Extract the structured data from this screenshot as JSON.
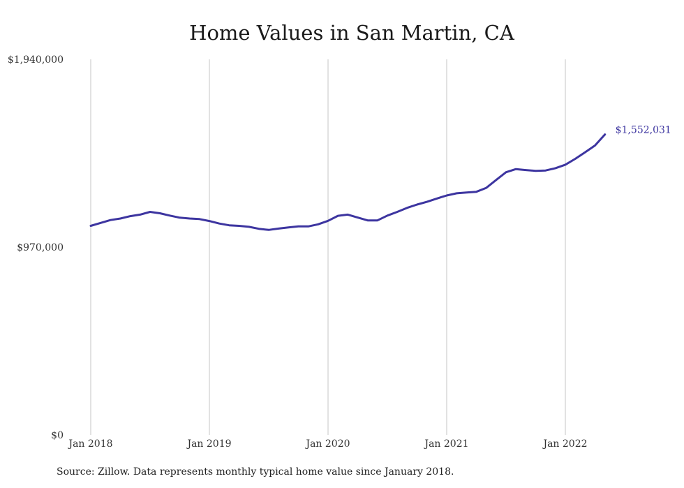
{
  "chart_data": {
    "type": "line",
    "title": "Home Values in San Martin, CA",
    "xlabel": "",
    "ylabel": "",
    "ylim": [
      0,
      1940000
    ],
    "yticks": [
      {
        "value": 0,
        "label": "$0"
      },
      {
        "value": 970000,
        "label": "$970,000"
      },
      {
        "value": 1940000,
        "label": "$1,940,000"
      }
    ],
    "xticks": [
      {
        "value": "2018-01",
        "label": "Jan 2018"
      },
      {
        "value": "2019-01",
        "label": "Jan 2019"
      },
      {
        "value": "2020-01",
        "label": "Jan 2020"
      },
      {
        "value": "2021-01",
        "label": "Jan 2021"
      },
      {
        "value": "2022-01",
        "label": "Jan 2022"
      }
    ],
    "grid": "vertical",
    "line_color": "#3d35a0",
    "end_label": "$1,552,031",
    "series": [
      {
        "x": [
          "2018-01",
          "2018-02",
          "2018-03",
          "2018-04",
          "2018-05",
          "2018-06",
          "2018-07",
          "2018-08",
          "2018-09",
          "2018-10",
          "2018-11",
          "2018-12",
          "2019-01",
          "2019-02",
          "2019-03",
          "2019-04",
          "2019-05",
          "2019-06",
          "2019-07",
          "2019-08",
          "2019-09",
          "2019-10",
          "2019-11",
          "2019-12",
          "2020-01",
          "2020-02",
          "2020-03",
          "2020-04",
          "2020-05",
          "2020-06",
          "2020-07",
          "2020-08",
          "2020-09",
          "2020-10",
          "2020-11",
          "2020-12",
          "2021-01",
          "2021-02",
          "2021-03",
          "2021-04",
          "2021-05",
          "2021-06",
          "2021-07",
          "2021-08",
          "2021-09",
          "2021-10",
          "2021-11",
          "2021-12",
          "2022-01",
          "2022-02",
          "2022-03",
          "2022-04",
          "2022-05"
        ],
        "values": [
          1080000,
          1095000,
          1110000,
          1118000,
          1130000,
          1138000,
          1152000,
          1145000,
          1133000,
          1122000,
          1118000,
          1115000,
          1105000,
          1092000,
          1083000,
          1080000,
          1075000,
          1065000,
          1059000,
          1066000,
          1072000,
          1077000,
          1077000,
          1088000,
          1106000,
          1132000,
          1138000,
          1123000,
          1108000,
          1108000,
          1133000,
          1152000,
          1173000,
          1190000,
          1204000,
          1221000,
          1237000,
          1248000,
          1252000,
          1256000,
          1276000,
          1317000,
          1357000,
          1373000,
          1368000,
          1364000,
          1366000,
          1378000,
          1396000,
          1426000,
          1460000,
          1495000,
          1552031
        ]
      }
    ]
  },
  "source_note": "Source: Zillow. Data represents monthly typical home value since January 2018."
}
